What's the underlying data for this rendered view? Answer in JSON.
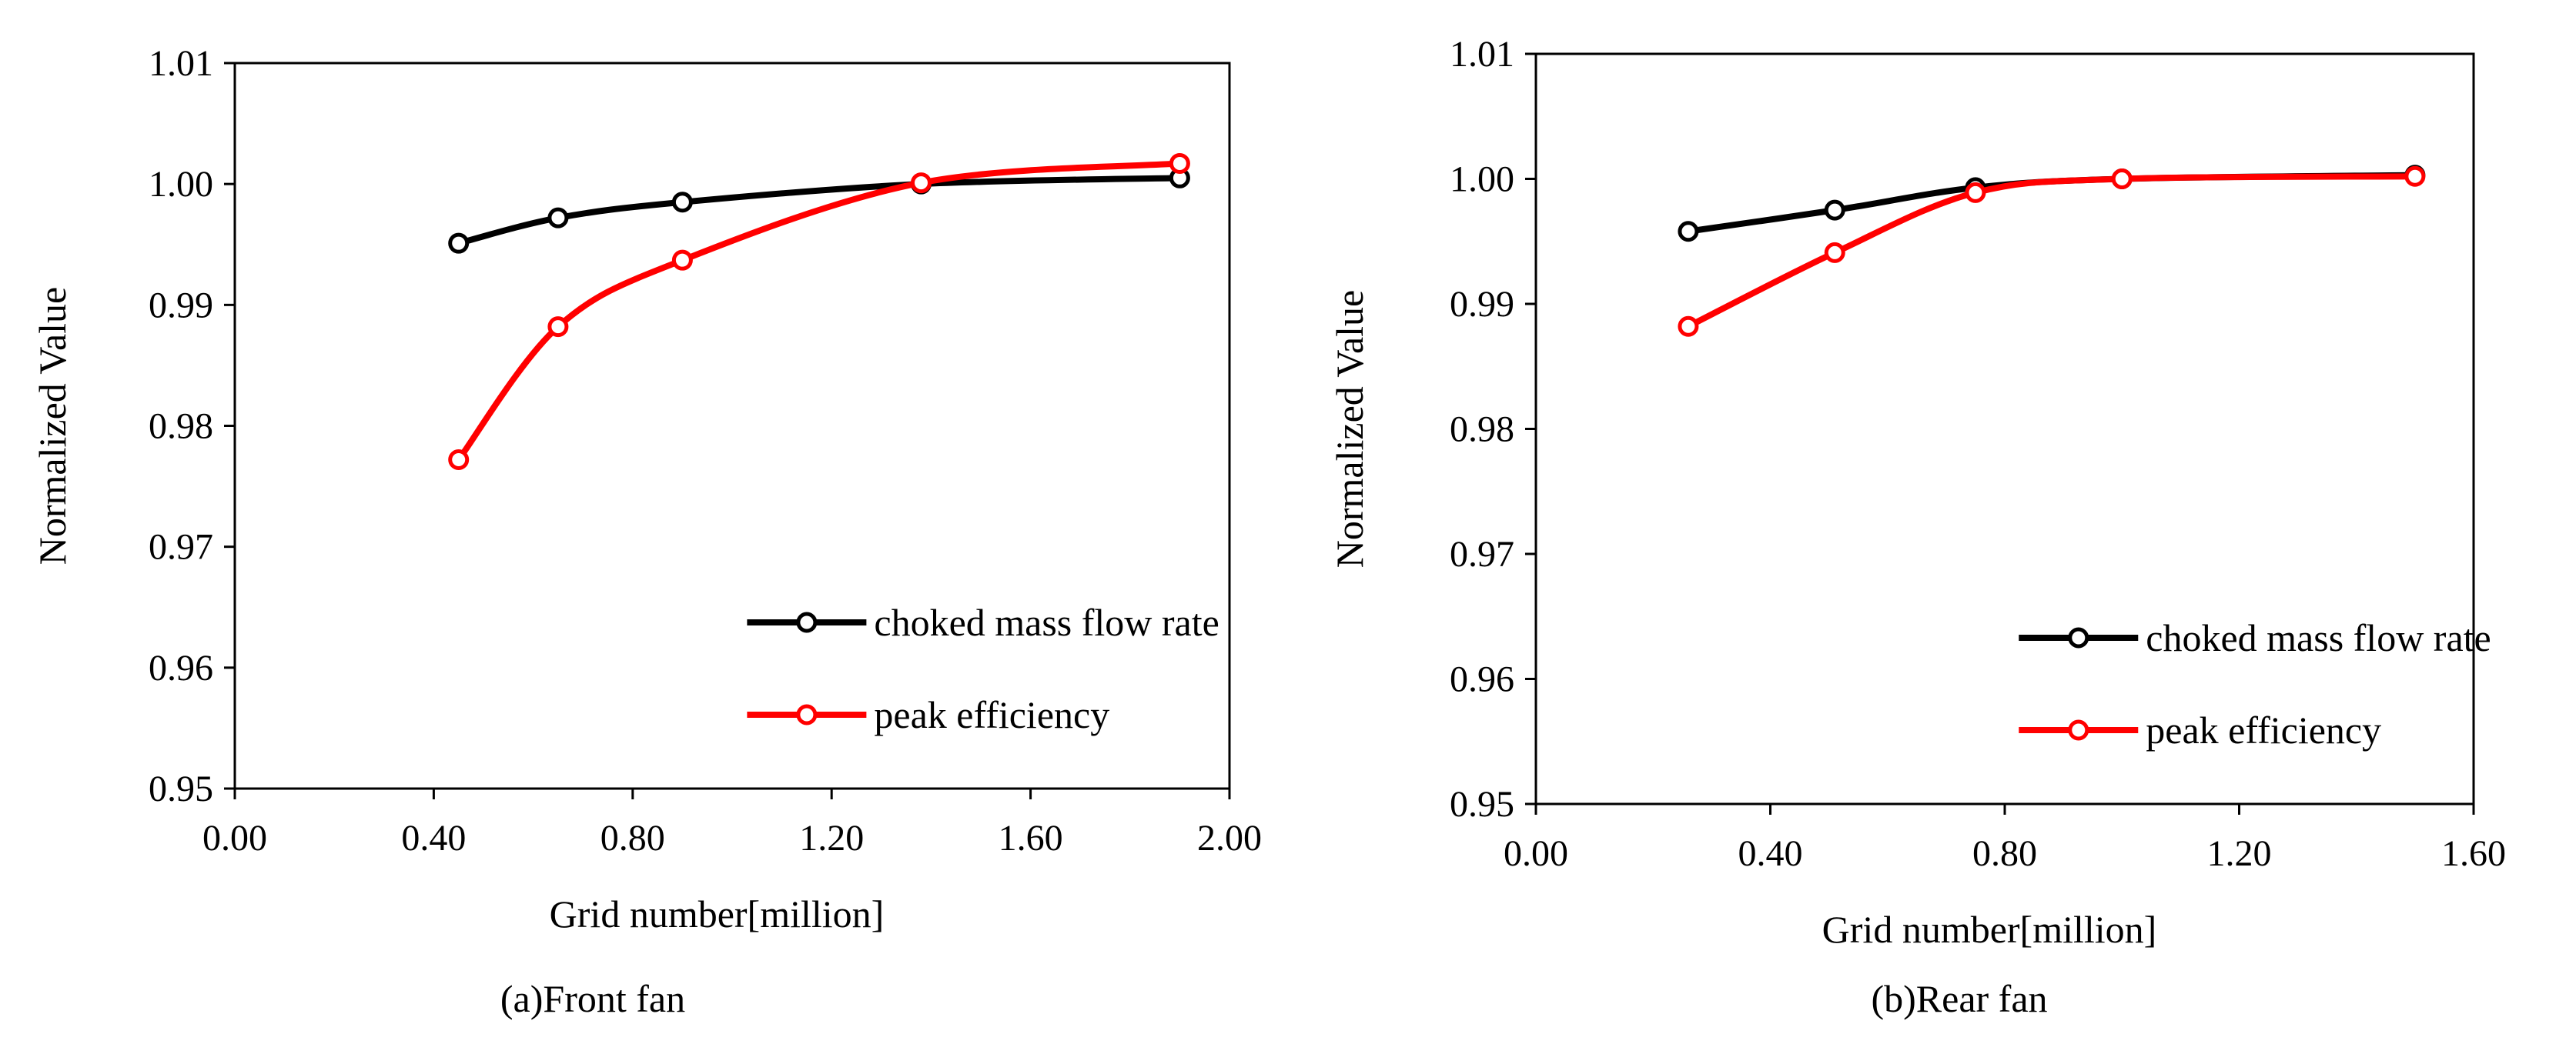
{
  "chart_data": [
    {
      "type": "line",
      "caption": "(a)Front fan",
      "xlabel": "Grid number[million]",
      "ylabel": "Normalized Value",
      "xlim": [
        0.0,
        2.0
      ],
      "ylim": [
        0.95,
        1.01
      ],
      "xticks": [
        "0.00",
        "0.40",
        "0.80",
        "1.20",
        "1.60",
        "2.00"
      ],
      "yticks": [
        "0.95",
        "0.96",
        "0.97",
        "0.98",
        "0.99",
        "1.00",
        "1.01"
      ],
      "legend_position": "bottom-right",
      "series": [
        {
          "name": "choked mass flow rate",
          "color": "#000000",
          "x": [
            0.45,
            0.65,
            0.9,
            1.38,
            1.9
          ],
          "y": [
            0.9951,
            0.9972,
            0.9985,
            1.0,
            1.0005
          ]
        },
        {
          "name": "peak efficiency",
          "color": "#ff0000",
          "x": [
            0.45,
            0.65,
            0.9,
            1.38,
            1.9
          ],
          "y": [
            0.9772,
            0.9882,
            0.9937,
            1.0001,
            1.0017
          ]
        }
      ]
    },
    {
      "type": "line",
      "caption": "(b)Rear fan",
      "xlabel": "Grid number[million]",
      "ylabel": "Normalized Value",
      "xlim": [
        0.0,
        1.6
      ],
      "ylim": [
        0.95,
        1.01
      ],
      "xticks": [
        "0.00",
        "0.40",
        "0.80",
        "1.20",
        "1.60"
      ],
      "yticks": [
        "0.95",
        "0.96",
        "0.97",
        "0.98",
        "0.99",
        "1.00",
        "1.01"
      ],
      "legend_position": "bottom-right",
      "series": [
        {
          "name": "choked mass flow rate",
          "color": "#000000",
          "x": [
            0.26,
            0.51,
            0.75,
            1.0,
            1.5
          ],
          "y": [
            0.9958,
            0.9975,
            0.9993,
            1.0,
            1.0003
          ]
        },
        {
          "name": "peak efficiency",
          "color": "#ff0000",
          "x": [
            0.26,
            0.51,
            0.75,
            1.0,
            1.5
          ],
          "y": [
            0.9882,
            0.9941,
            0.9989,
            1.0,
            1.0002
          ]
        }
      ]
    }
  ]
}
